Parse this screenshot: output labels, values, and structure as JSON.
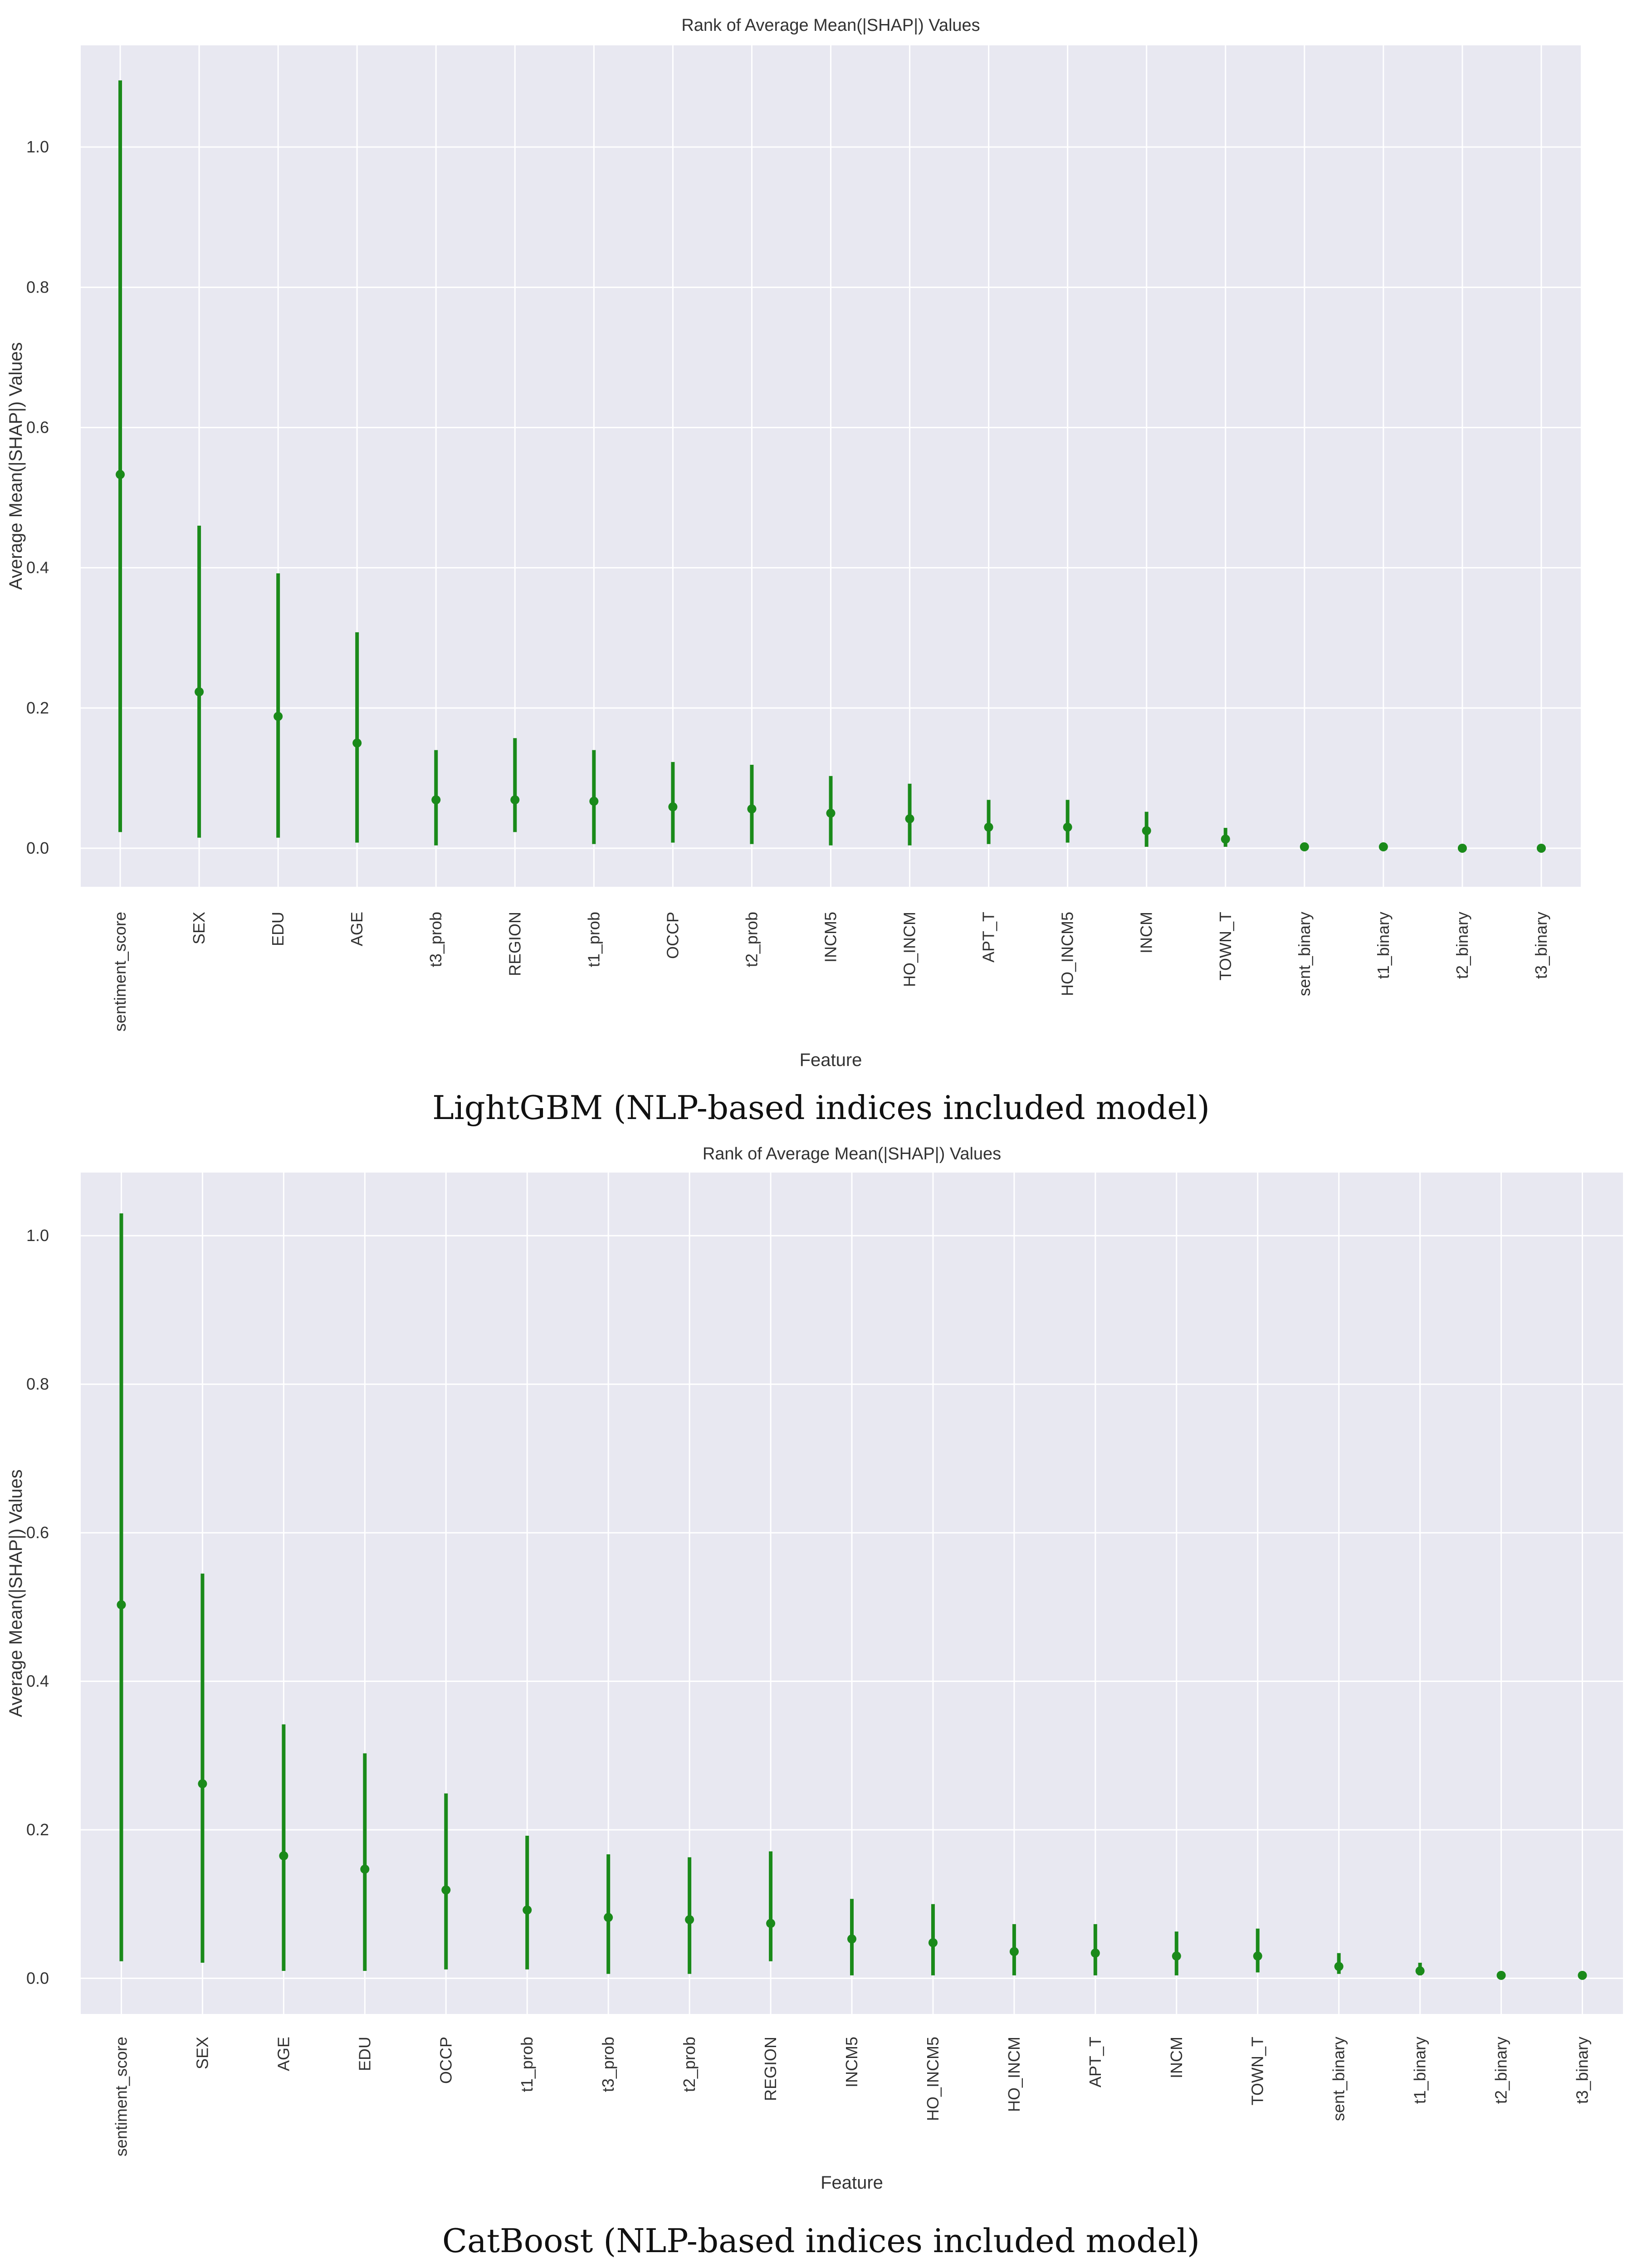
{
  "colors": {
    "plot_bg": "#e8e8f1",
    "grid": "#ffffff",
    "mark": "#1a8a1a",
    "text": "#333333"
  },
  "chart_data": [
    {
      "type": "errorbar",
      "title": "Rank of Average Mean(|SHAP|) Values",
      "xlabel": "Feature",
      "ylabel": "Average Mean(|SHAP|) Values",
      "ylim": [
        -0.055,
        1.145
      ],
      "yticks": [
        0.0,
        0.2,
        0.4,
        0.6,
        0.8,
        1.0
      ],
      "ytick_labels": [
        "0.0",
        "0.2",
        "0.4",
        "0.6",
        "0.8",
        "1.0"
      ],
      "grid": true,
      "caption": "LightGBM (NLP-based indices included model)",
      "categories": [
        "sentiment_score",
        "SEX",
        "EDU",
        "AGE",
        "t3_prob",
        "REGION",
        "t1_prob",
        "OCCP",
        "t2_prob",
        "INCM5",
        "HO_INCM",
        "APT_T",
        "HO_INCM5",
        "INCM",
        "TOWN_T",
        "sent_binary",
        "t1_binary",
        "t2_binary",
        "t3_binary"
      ],
      "values": [
        0.533,
        0.223,
        0.188,
        0.15,
        0.069,
        0.069,
        0.067,
        0.059,
        0.056,
        0.05,
        0.042,
        0.03,
        0.03,
        0.025,
        0.013,
        0.002,
        0.002,
        0.0,
        0.0
      ],
      "lower": [
        0.023,
        0.015,
        0.015,
        0.008,
        0.004,
        0.023,
        0.006,
        0.008,
        0.006,
        0.004,
        0.004,
        0.006,
        0.008,
        0.002,
        0.002,
        0.0,
        0.0,
        0.0,
        0.0
      ],
      "upper": [
        1.095,
        0.46,
        0.392,
        0.308,
        0.14,
        0.157,
        0.14,
        0.123,
        0.119,
        0.103,
        0.092,
        0.069,
        0.069,
        0.052,
        0.029,
        0.006,
        0.006,
        0.002,
        0.002
      ]
    },
    {
      "type": "errorbar",
      "title": "Rank of Average Mean(|SHAP|) Values",
      "xlabel": "Feature",
      "ylabel": "Average Mean(|SHAP|) Values",
      "ylim": [
        -0.048,
        1.085
      ],
      "yticks": [
        0.0,
        0.2,
        0.4,
        0.6,
        0.8,
        1.0
      ],
      "ytick_labels": [
        "0.0",
        "0.2",
        "0.4",
        "0.6",
        "0.8",
        "1.0"
      ],
      "grid": true,
      "caption": "CatBoost (NLP-based indices included model)",
      "categories": [
        "sentiment_score",
        "SEX",
        "AGE",
        "EDU",
        "OCCP",
        "t1_prob",
        "t3_prob",
        "t2_prob",
        "REGION",
        "INCM5",
        "HO_INCM5",
        "HO_INCM",
        "APT_T",
        "INCM",
        "TOWN_T",
        "sent_binary",
        "t1_binary",
        "t2_binary",
        "t3_binary"
      ],
      "values": [
        0.503,
        0.262,
        0.165,
        0.147,
        0.119,
        0.092,
        0.082,
        0.079,
        0.074,
        0.053,
        0.048,
        0.036,
        0.034,
        0.03,
        0.03,
        0.016,
        0.01,
        0.004,
        0.004
      ],
      "lower": [
        0.023,
        0.021,
        0.01,
        0.01,
        0.012,
        0.012,
        0.006,
        0.006,
        0.023,
        0.004,
        0.004,
        0.004,
        0.004,
        0.004,
        0.008,
        0.006,
        0.004,
        0.0,
        0.0
      ],
      "upper": [
        1.03,
        0.545,
        0.342,
        0.303,
        0.249,
        0.192,
        0.167,
        0.163,
        0.171,
        0.107,
        0.1,
        0.073,
        0.073,
        0.063,
        0.067,
        0.034,
        0.021,
        0.008,
        0.008
      ]
    }
  ]
}
